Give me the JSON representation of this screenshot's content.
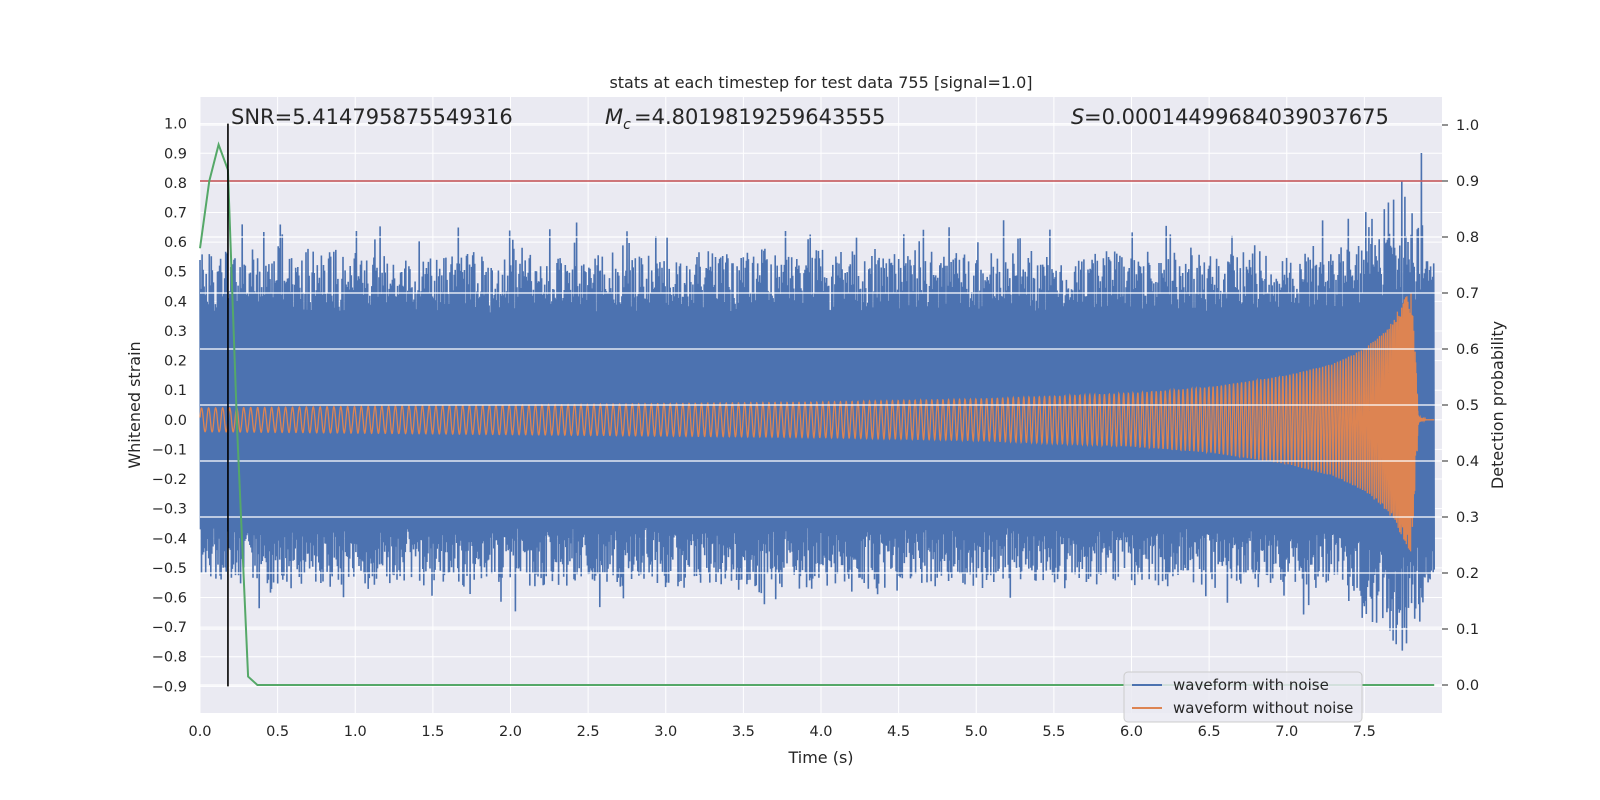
{
  "chart_data": {
    "type": "line",
    "title": "stats at each timestep for test data 755 [signal=1.0]",
    "xlabel": "Time (s)",
    "ylabel_left": "Whitened strain",
    "ylabel_right": "Detection probability",
    "xlim": [
      0.0,
      8.0
    ],
    "ylim_left": [
      -0.99,
      1.09
    ],
    "ylim_right": [
      -0.05,
      1.05
    ],
    "x_ticks": [
      "0.0",
      "0.5",
      "1.0",
      "1.5",
      "2.0",
      "2.5",
      "3.0",
      "3.5",
      "4.0",
      "4.5",
      "5.0",
      "5.5",
      "6.0",
      "6.5",
      "7.0",
      "7.5"
    ],
    "y_ticks_left": [
      "1.0",
      "0.9",
      "0.8",
      "0.7",
      "0.6",
      "0.5",
      "0.4",
      "0.3",
      "0.2",
      "0.1",
      "0.0",
      "−0.1",
      "−0.2",
      "−0.3",
      "−0.4",
      "−0.5",
      "−0.6",
      "−0.7",
      "−0.8",
      "−0.9"
    ],
    "y_ticks_right": [
      "1.0",
      "0.9",
      "0.8",
      "0.7",
      "0.6",
      "0.5",
      "0.4",
      "0.3",
      "0.2",
      "0.1",
      "0.0"
    ],
    "annotations": {
      "snr": "SNR=5.414795875549316",
      "mc": "=4.8019819259643555",
      "s": "=0.00014499684039037675"
    },
    "series": [
      {
        "name": "waveform with noise",
        "color": "#4c72b0",
        "axis": "left",
        "note": "noisy whitened strain, dense band roughly between -0.6 and 0.6 with spikes to about 1.0 near t=7.8 s"
      },
      {
        "name": "waveform without noise",
        "color": "#dd8452",
        "axis": "left",
        "envelope_x": [
          0.0,
          1.0,
          2.0,
          3.0,
          4.0,
          5.0,
          6.0,
          6.5,
          7.0,
          7.3,
          7.5,
          7.65,
          7.75,
          7.8,
          7.82,
          7.85,
          7.9,
          8.0
        ],
        "envelope_amp": [
          0.04,
          0.045,
          0.05,
          0.055,
          0.06,
          0.07,
          0.09,
          0.11,
          0.15,
          0.19,
          0.24,
          0.31,
          0.4,
          0.45,
          0.3,
          0.01,
          0.0,
          0.0
        ]
      },
      {
        "name": "detection probability",
        "color": "#55a868",
        "axis": "right",
        "x": [
          0.0,
          0.06,
          0.12,
          0.18,
          0.24,
          0.31,
          0.37,
          0.5,
          7.95
        ],
        "y": [
          0.78,
          0.9,
          0.965,
          0.92,
          0.45,
          0.015,
          0.0,
          0.0,
          0.0
        ]
      }
    ],
    "threshold_right": 0.9,
    "threshold_color": "#c44e52",
    "vertical_line_x": 0.18,
    "vertical_line_color": "#000000",
    "legend": {
      "position": "lower-right",
      "entries": [
        "waveform with noise",
        "waveform without noise"
      ]
    }
  }
}
